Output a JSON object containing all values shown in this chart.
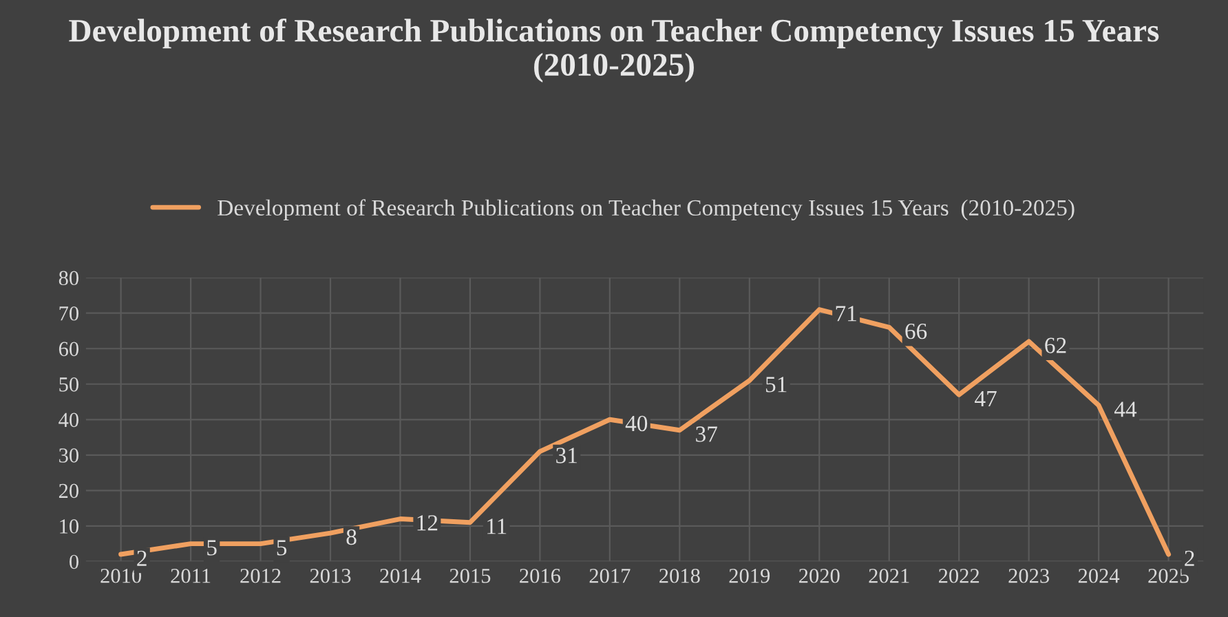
{
  "chart_data": {
    "type": "line",
    "title": "Development of Research Publications on Teacher Competency Issues 15 Years (2010-2025)",
    "categories": [
      "2010",
      "2011",
      "2012",
      "2013",
      "2014",
      "2015",
      "2016",
      "2017",
      "2018",
      "2019",
      "2020",
      "2021",
      "2022",
      "2023",
      "2024",
      "2025"
    ],
    "series": [
      {
        "name": "Development of Research Publications on Teacher Competency Issues 15 Years  (2010-2025)",
        "color": "#f0a060",
        "values": [
          2,
          5,
          5,
          8,
          12,
          11,
          31,
          40,
          37,
          51,
          71,
          66,
          47,
          62,
          44,
          2
        ]
      }
    ],
    "ylim": [
      0,
      80
    ],
    "yticks": [
      0,
      10,
      20,
      30,
      40,
      50,
      60,
      70,
      80
    ],
    "grid": true,
    "legend": "top",
    "data_labels": true,
    "marker": "none",
    "line_style": "solid"
  }
}
